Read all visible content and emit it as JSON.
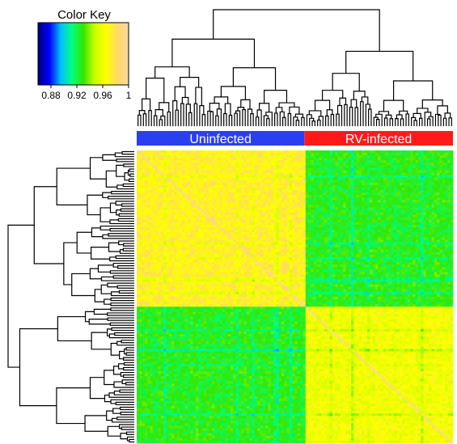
{
  "chart_data": {
    "type": "heatmap",
    "color_key": {
      "title": "Color Key",
      "range": [
        0.86,
        1.0
      ],
      "tick_labels": [
        "0.88",
        "0.92",
        "0.96",
        "1"
      ],
      "tick_values": [
        0.88,
        0.92,
        0.96,
        1.0
      ],
      "colors": [
        "#00007a",
        "#0000ff",
        "#00bfff",
        "#00ff80",
        "#33e600",
        "#c8ff00",
        "#ffff00",
        "#ffd966",
        "#fad7a0"
      ]
    },
    "groups": [
      {
        "name": "Uninfected",
        "fraction": 0.53,
        "color": "#2b3ff0"
      },
      {
        "name": "RV-infected",
        "fraction": 0.47,
        "color": "#ff1a1a"
      }
    ],
    "matrix_summary": {
      "rows": 118,
      "cols": 118,
      "diagonal_value": 1.0,
      "within_uninfected": 0.975,
      "within_rv_infected": 0.965,
      "between_groups": 0.93
    },
    "dendrograms": [
      "column",
      "row"
    ]
  }
}
